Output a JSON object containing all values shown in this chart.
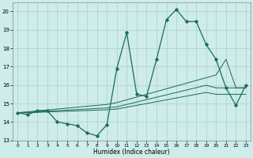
{
  "xlabel": "Humidex (Indice chaleur)",
  "bg_color": "#cdecea",
  "grid_color": "#b0ceca",
  "line_color": "#1a6b5e",
  "x_values": [
    0,
    1,
    2,
    3,
    4,
    5,
    6,
    7,
    8,
    9,
    10,
    11,
    12,
    13,
    14,
    15,
    16,
    17,
    18,
    19,
    20,
    21,
    22,
    23
  ],
  "y_main": [
    14.5,
    14.4,
    14.6,
    14.6,
    14.0,
    13.9,
    13.8,
    13.4,
    13.25,
    13.85,
    16.9,
    18.85,
    15.5,
    15.4,
    17.4,
    19.55,
    20.1,
    19.45,
    19.45,
    18.2,
    17.4,
    15.85,
    14.9,
    16.0
  ],
  "y_line1": [
    14.5,
    14.55,
    14.6,
    14.65,
    14.7,
    14.75,
    14.8,
    14.85,
    14.9,
    14.95,
    15.05,
    15.2,
    15.35,
    15.5,
    15.65,
    15.8,
    15.95,
    16.1,
    16.25,
    16.4,
    16.55,
    17.4,
    15.85,
    15.85
  ],
  "y_line2": [
    14.5,
    14.52,
    14.55,
    14.58,
    14.61,
    14.64,
    14.67,
    14.7,
    14.73,
    14.76,
    14.82,
    14.95,
    15.08,
    15.21,
    15.34,
    15.47,
    15.6,
    15.73,
    15.86,
    15.99,
    15.85,
    15.85,
    15.85,
    15.85
  ],
  "y_line3": [
    14.5,
    14.5,
    14.52,
    14.54,
    14.56,
    14.58,
    14.6,
    14.62,
    14.64,
    14.66,
    14.7,
    14.8,
    14.9,
    15.0,
    15.1,
    15.2,
    15.3,
    15.4,
    15.5,
    15.6,
    15.5,
    15.5,
    15.5,
    15.5
  ],
  "ylim": [
    13.0,
    20.5
  ],
  "xlim": [
    -0.5,
    23.5
  ],
  "yticks": [
    13,
    14,
    15,
    16,
    17,
    18,
    19,
    20
  ],
  "xticks": [
    0,
    1,
    2,
    3,
    4,
    5,
    6,
    7,
    8,
    9,
    10,
    11,
    12,
    13,
    14,
    15,
    16,
    17,
    18,
    19,
    20,
    21,
    22,
    23
  ]
}
